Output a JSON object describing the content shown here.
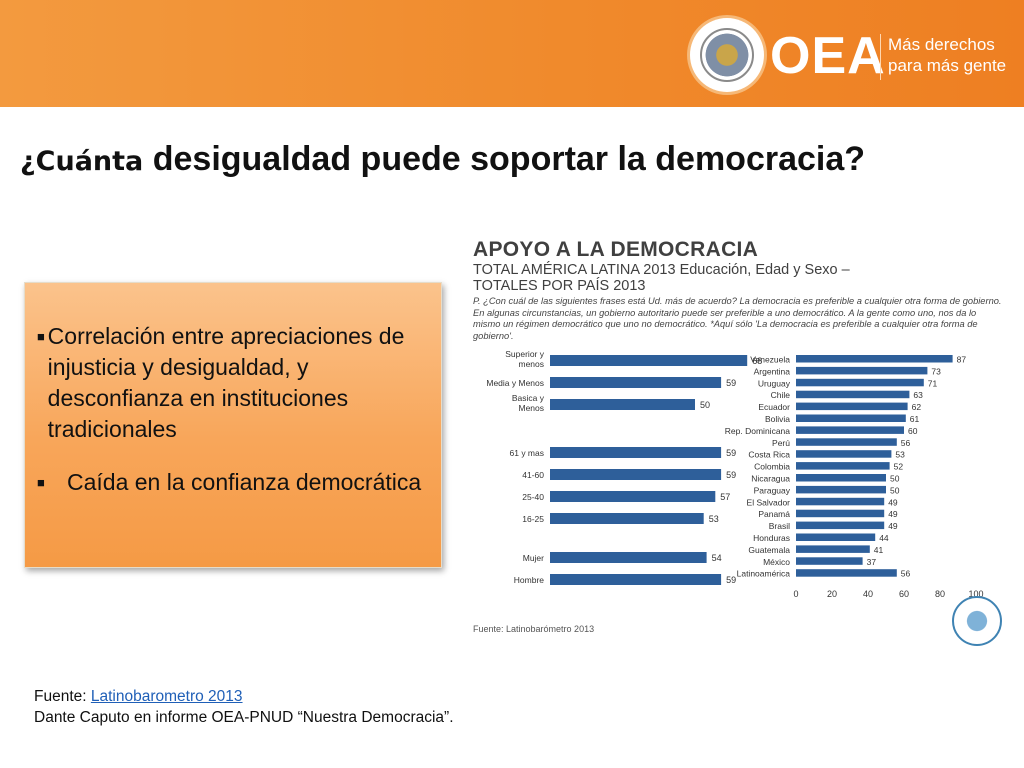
{
  "header": {
    "brand": "OEA",
    "tagline": [
      "Más derechos",
      "para más gente"
    ]
  },
  "slide": {
    "title_lead": "¿Cuánta",
    "title_rest": " desigualdad puede soportar la democracia?",
    "bullets": [
      "Correlación entre apreciaciones de injusticia y desigualdad, y desconfianza en instituciones tradicionales",
      "Caída en la confianza democrática"
    ]
  },
  "chart_header": {
    "title": "APOYO A LA DEMOCRACIA",
    "subtitle": "TOTAL AMÉRICA LATINA 2013 Educación, Edad y Sexo – TOTALES POR PAÍS 2013",
    "note": "P. ¿Con cuál de las siguientes frases está Ud. más de acuerdo? La democracia es preferible a cualquier otra forma de gobierno. En algunas circunstancias, un gobierno autoritario puede ser preferible a uno democrático. A la gente como uno, nos da lo mismo un régimen democrático que uno no democrático. *Aquí sólo 'La democracia es preferible a cualquier otra forma de gobierno'.",
    "source": "Fuente: Latinobarómetro 2013"
  },
  "chart_data": [
    {
      "type": "bar",
      "orientation": "horizontal",
      "groups": [
        {
          "categories": [
            "Superior y menos",
            "Media y Menos",
            "Basica y Menos"
          ],
          "values": [
            68,
            59,
            50
          ]
        },
        {
          "categories": [
            "61 y mas",
            "41-60",
            "25-40",
            "16-25"
          ],
          "values": [
            59,
            59,
            57,
            53
          ]
        },
        {
          "categories": [
            "Mujer",
            "Hombre"
          ],
          "values": [
            54,
            59
          ]
        }
      ],
      "bar_color": "#2e5f9a"
    },
    {
      "type": "bar",
      "orientation": "horizontal",
      "categories": [
        "Venezuela",
        "Argentina",
        "Uruguay",
        "Chile",
        "Ecuador",
        "Bolivia",
        "Rep. Dominicana",
        "Perú",
        "Costa Rica",
        "Colombia",
        "Nicaragua",
        "Paraguay",
        "El Salvador",
        "Panamá",
        "Brasil",
        "Honduras",
        "Guatemala",
        "México",
        "Latinoamérica"
      ],
      "values": [
        87,
        73,
        71,
        63,
        62,
        61,
        60,
        56,
        53,
        52,
        50,
        50,
        49,
        49,
        49,
        44,
        41,
        37,
        56
      ],
      "xlim": [
        0,
        100
      ],
      "xticks": [
        0,
        20,
        40,
        60,
        80,
        100
      ],
      "bar_color": "#2e5f9a"
    }
  ],
  "footer": {
    "source_prefix": "Fuente: ",
    "source_link": "Latinobarometro 2013",
    "credit": "Dante Caputo en informe OEA-PNUD “Nuestra Democracia”."
  }
}
